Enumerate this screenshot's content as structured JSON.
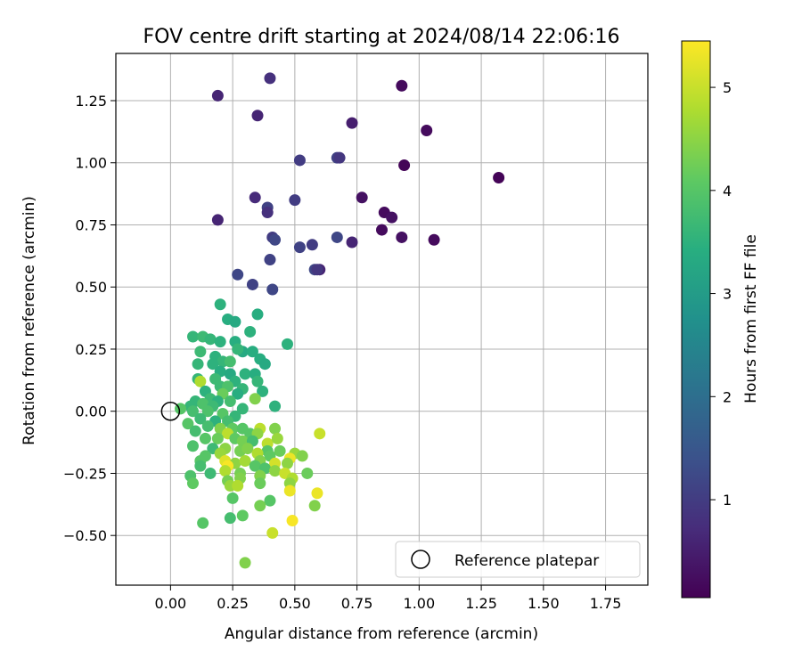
{
  "chart_data": {
    "type": "scatter",
    "title": "FOV centre drift starting at 2024/08/14 22:06:16",
    "xlabel": "Angular distance from reference (arcmin)",
    "ylabel": "Rotation from reference (arcmin)",
    "xlim": [
      -0.22,
      1.92
    ],
    "ylim": [
      -0.7,
      1.44
    ],
    "xticks": [
      "0.00",
      "0.25",
      "0.50",
      "0.75",
      "1.00",
      "1.25",
      "1.50",
      "1.75"
    ],
    "xtick_values": [
      0,
      0.25,
      0.5,
      0.75,
      1.0,
      1.25,
      1.5,
      1.75
    ],
    "yticks": [
      "−0.50",
      "−0.25",
      "0.00",
      "0.25",
      "0.50",
      "0.75",
      "1.00",
      "1.25"
    ],
    "ytick_values": [
      -0.5,
      -0.25,
      0,
      0.25,
      0.5,
      0.75,
      1.0,
      1.25
    ],
    "grid": true,
    "legend": {
      "placement": "lower-right",
      "entries": [
        "Reference platepar"
      ]
    },
    "reference": {
      "x": 0,
      "y": 0
    },
    "colorbar": {
      "label": "Hours from first FF file",
      "colormap": "viridis",
      "range": [
        0.05,
        5.45
      ],
      "tick_values": [
        1,
        2,
        3,
        4,
        5
      ],
      "ticks": [
        "1",
        "2",
        "3",
        "4",
        "5"
      ]
    },
    "points": [
      {
        "x": 0.4,
        "y": 1.34,
        "h": 0.8
      },
      {
        "x": 0.93,
        "y": 1.31,
        "h": 0.2
      },
      {
        "x": 0.19,
        "y": 1.27,
        "h": 0.6
      },
      {
        "x": 0.35,
        "y": 1.19,
        "h": 0.6
      },
      {
        "x": 0.73,
        "y": 1.16,
        "h": 0.5
      },
      {
        "x": 1.03,
        "y": 1.13,
        "h": 0.2
      },
      {
        "x": 0.52,
        "y": 1.01,
        "h": 1.0
      },
      {
        "x": 0.67,
        "y": 1.02,
        "h": 1.1
      },
      {
        "x": 0.68,
        "y": 1.02,
        "h": 0.9
      },
      {
        "x": 0.94,
        "y": 0.99,
        "h": 0.1
      },
      {
        "x": 1.32,
        "y": 0.94,
        "h": 0.1
      },
      {
        "x": 0.34,
        "y": 0.86,
        "h": 0.7
      },
      {
        "x": 0.5,
        "y": 0.85,
        "h": 1.0
      },
      {
        "x": 0.77,
        "y": 0.86,
        "h": 0.3
      },
      {
        "x": 0.39,
        "y": 0.82,
        "h": 1.1
      },
      {
        "x": 0.39,
        "y": 0.8,
        "h": 0.8
      },
      {
        "x": 0.86,
        "y": 0.8,
        "h": 0.2
      },
      {
        "x": 0.89,
        "y": 0.78,
        "h": 0.3
      },
      {
        "x": 0.19,
        "y": 0.77,
        "h": 0.6
      },
      {
        "x": 0.85,
        "y": 0.73,
        "h": 0.2
      },
      {
        "x": 0.93,
        "y": 0.7,
        "h": 0.3
      },
      {
        "x": 1.06,
        "y": 0.69,
        "h": 0.2
      },
      {
        "x": 0.41,
        "y": 0.7,
        "h": 1.0
      },
      {
        "x": 0.42,
        "y": 0.69,
        "h": 1.2
      },
      {
        "x": 0.67,
        "y": 0.7,
        "h": 1.2
      },
      {
        "x": 0.73,
        "y": 0.68,
        "h": 0.6
      },
      {
        "x": 0.52,
        "y": 0.66,
        "h": 1.1
      },
      {
        "x": 0.57,
        "y": 0.67,
        "h": 1.0
      },
      {
        "x": 0.4,
        "y": 0.61,
        "h": 1.1
      },
      {
        "x": 0.6,
        "y": 0.57,
        "h": 0.6
      },
      {
        "x": 0.58,
        "y": 0.57,
        "h": 1.2
      },
      {
        "x": 0.59,
        "y": 0.57,
        "h": 0.9
      },
      {
        "x": 0.27,
        "y": 0.55,
        "h": 1.2
      },
      {
        "x": 0.33,
        "y": 0.51,
        "h": 1.1
      },
      {
        "x": 0.41,
        "y": 0.49,
        "h": 1.2
      },
      {
        "x": 0.2,
        "y": 0.43,
        "h": 3.5
      },
      {
        "x": 0.23,
        "y": 0.37,
        "h": 3.4
      },
      {
        "x": 0.26,
        "y": 0.36,
        "h": 3.3
      },
      {
        "x": 0.35,
        "y": 0.39,
        "h": 3.4
      },
      {
        "x": 0.32,
        "y": 0.32,
        "h": 3.5
      },
      {
        "x": 0.09,
        "y": 0.3,
        "h": 3.6
      },
      {
        "x": 0.13,
        "y": 0.3,
        "h": 3.7
      },
      {
        "x": 0.16,
        "y": 0.29,
        "h": 3.6
      },
      {
        "x": 0.2,
        "y": 0.28,
        "h": 3.5
      },
      {
        "x": 0.26,
        "y": 0.28,
        "h": 3.4
      },
      {
        "x": 0.47,
        "y": 0.27,
        "h": 3.5
      },
      {
        "x": 0.29,
        "y": 0.24,
        "h": 3.3
      },
      {
        "x": 0.33,
        "y": 0.24,
        "h": 3.4
      },
      {
        "x": 0.27,
        "y": 0.25,
        "h": 3.6
      },
      {
        "x": 0.12,
        "y": 0.24,
        "h": 3.7
      },
      {
        "x": 0.18,
        "y": 0.22,
        "h": 3.5
      },
      {
        "x": 0.21,
        "y": 0.2,
        "h": 3.6
      },
      {
        "x": 0.24,
        "y": 0.2,
        "h": 3.8
      },
      {
        "x": 0.36,
        "y": 0.21,
        "h": 3.4
      },
      {
        "x": 0.38,
        "y": 0.19,
        "h": 3.3
      },
      {
        "x": 0.11,
        "y": 0.19,
        "h": 3.6
      },
      {
        "x": 0.17,
        "y": 0.19,
        "h": 3.5
      },
      {
        "x": 0.2,
        "y": 0.16,
        "h": 3.4
      },
      {
        "x": 0.24,
        "y": 0.15,
        "h": 3.3
      },
      {
        "x": 0.3,
        "y": 0.15,
        "h": 3.5
      },
      {
        "x": 0.34,
        "y": 0.15,
        "h": 3.4
      },
      {
        "x": 0.11,
        "y": 0.13,
        "h": 3.6
      },
      {
        "x": 0.12,
        "y": 0.12,
        "h": 4.8
      },
      {
        "x": 0.18,
        "y": 0.13,
        "h": 3.7
      },
      {
        "x": 0.26,
        "y": 0.12,
        "h": 3.5
      },
      {
        "x": 0.35,
        "y": 0.12,
        "h": 3.6
      },
      {
        "x": 0.2,
        "y": 0.1,
        "h": 3.7
      },
      {
        "x": 0.23,
        "y": 0.1,
        "h": 3.9
      },
      {
        "x": 0.29,
        "y": 0.09,
        "h": 3.6
      },
      {
        "x": 0.14,
        "y": 0.08,
        "h": 3.5
      },
      {
        "x": 0.21,
        "y": 0.07,
        "h": 4.2
      },
      {
        "x": 0.27,
        "y": 0.07,
        "h": 3.4
      },
      {
        "x": 0.37,
        "y": 0.08,
        "h": 3.5
      },
      {
        "x": 0.34,
        "y": 0.05,
        "h": 4.4
      },
      {
        "x": 0.16,
        "y": 0.05,
        "h": 3.7
      },
      {
        "x": 0.1,
        "y": 0.04,
        "h": 3.6
      },
      {
        "x": 0.19,
        "y": 0.04,
        "h": 3.5
      },
      {
        "x": 0.24,
        "y": 0.04,
        "h": 3.8
      },
      {
        "x": 0.13,
        "y": 0.03,
        "h": 3.9
      },
      {
        "x": 0.08,
        "y": 0.02,
        "h": 3.6
      },
      {
        "x": 0.17,
        "y": 0.02,
        "h": 3.7
      },
      {
        "x": 0.29,
        "y": 0.01,
        "h": 3.6
      },
      {
        "x": 0.42,
        "y": 0.02,
        "h": 3.5
      },
      {
        "x": 0.04,
        "y": 0.01,
        "h": 4.0
      },
      {
        "x": 0.09,
        "y": 0.0,
        "h": 3.8
      },
      {
        "x": 0.15,
        "y": 0.0,
        "h": 3.9
      },
      {
        "x": 0.21,
        "y": -0.01,
        "h": 4.0
      },
      {
        "x": 0.26,
        "y": -0.02,
        "h": 3.6
      },
      {
        "x": 0.12,
        "y": -0.03,
        "h": 3.7
      },
      {
        "x": 0.18,
        "y": -0.04,
        "h": 3.5
      },
      {
        "x": 0.23,
        "y": -0.04,
        "h": 3.8
      },
      {
        "x": 0.07,
        "y": -0.05,
        "h": 4.0
      },
      {
        "x": 0.15,
        "y": -0.06,
        "h": 3.8
      },
      {
        "x": 0.2,
        "y": -0.07,
        "h": 4.4
      },
      {
        "x": 0.25,
        "y": -0.07,
        "h": 4.1
      },
      {
        "x": 0.29,
        "y": -0.07,
        "h": 4.0
      },
      {
        "x": 0.36,
        "y": -0.07,
        "h": 4.9
      },
      {
        "x": 0.42,
        "y": -0.07,
        "h": 4.4
      },
      {
        "x": 0.1,
        "y": -0.08,
        "h": 3.8
      },
      {
        "x": 0.23,
        "y": -0.09,
        "h": 4.9
      },
      {
        "x": 0.32,
        "y": -0.09,
        "h": 4.0
      },
      {
        "x": 0.35,
        "y": -0.09,
        "h": 4.5
      },
      {
        "x": 0.6,
        "y": -0.09,
        "h": 5.0
      },
      {
        "x": 0.14,
        "y": -0.11,
        "h": 4.0
      },
      {
        "x": 0.19,
        "y": -0.11,
        "h": 4.2
      },
      {
        "x": 0.26,
        "y": -0.11,
        "h": 4.1
      },
      {
        "x": 0.29,
        "y": -0.12,
        "h": 4.3
      },
      {
        "x": 0.33,
        "y": -0.12,
        "h": 3.8
      },
      {
        "x": 0.39,
        "y": -0.13,
        "h": 4.9
      },
      {
        "x": 0.43,
        "y": -0.11,
        "h": 4.6
      },
      {
        "x": 0.09,
        "y": -0.14,
        "h": 3.9
      },
      {
        "x": 0.17,
        "y": -0.15,
        "h": 3.7
      },
      {
        "x": 0.22,
        "y": -0.15,
        "h": 4.5
      },
      {
        "x": 0.28,
        "y": -0.16,
        "h": 4.3
      },
      {
        "x": 0.31,
        "y": -0.15,
        "h": 4.4
      },
      {
        "x": 0.39,
        "y": -0.16,
        "h": 4.0
      },
      {
        "x": 0.44,
        "y": -0.16,
        "h": 4.2
      },
      {
        "x": 0.5,
        "y": -0.17,
        "h": 4.6
      },
      {
        "x": 0.14,
        "y": -0.18,
        "h": 4.0
      },
      {
        "x": 0.2,
        "y": -0.17,
        "h": 4.6
      },
      {
        "x": 0.35,
        "y": -0.17,
        "h": 4.8
      },
      {
        "x": 0.4,
        "y": -0.18,
        "h": 4.1
      },
      {
        "x": 0.48,
        "y": -0.19,
        "h": 5.3
      },
      {
        "x": 0.53,
        "y": -0.18,
        "h": 4.4
      },
      {
        "x": 0.12,
        "y": -0.2,
        "h": 4.0
      },
      {
        "x": 0.22,
        "y": -0.2,
        "h": 5.2
      },
      {
        "x": 0.26,
        "y": -0.21,
        "h": 4.5
      },
      {
        "x": 0.3,
        "y": -0.2,
        "h": 4.7
      },
      {
        "x": 0.36,
        "y": -0.2,
        "h": 4.4
      },
      {
        "x": 0.42,
        "y": -0.21,
        "h": 5.1
      },
      {
        "x": 0.47,
        "y": -0.21,
        "h": 4.5
      },
      {
        "x": 0.12,
        "y": -0.22,
        "h": 3.8
      },
      {
        "x": 0.23,
        "y": -0.22,
        "h": 5.4
      },
      {
        "x": 0.34,
        "y": -0.22,
        "h": 4.0
      },
      {
        "x": 0.38,
        "y": -0.23,
        "h": 3.9
      },
      {
        "x": 0.16,
        "y": -0.25,
        "h": 3.7
      },
      {
        "x": 0.22,
        "y": -0.24,
        "h": 4.8
      },
      {
        "x": 0.28,
        "y": -0.25,
        "h": 4.3
      },
      {
        "x": 0.42,
        "y": -0.24,
        "h": 4.5
      },
      {
        "x": 0.46,
        "y": -0.25,
        "h": 5.0
      },
      {
        "x": 0.55,
        "y": -0.25,
        "h": 4.2
      },
      {
        "x": 0.08,
        "y": -0.26,
        "h": 3.9
      },
      {
        "x": 0.36,
        "y": -0.26,
        "h": 4.4
      },
      {
        "x": 0.49,
        "y": -0.27,
        "h": 4.8
      },
      {
        "x": 0.23,
        "y": -0.28,
        "h": 4.3
      },
      {
        "x": 0.28,
        "y": -0.27,
        "h": 4.4
      },
      {
        "x": 0.36,
        "y": -0.29,
        "h": 4.2
      },
      {
        "x": 0.09,
        "y": -0.29,
        "h": 4.1
      },
      {
        "x": 0.24,
        "y": -0.3,
        "h": 4.6
      },
      {
        "x": 0.27,
        "y": -0.3,
        "h": 4.8
      },
      {
        "x": 0.48,
        "y": -0.29,
        "h": 4.5
      },
      {
        "x": 0.48,
        "y": -0.32,
        "h": 5.3
      },
      {
        "x": 0.59,
        "y": -0.33,
        "h": 5.3
      },
      {
        "x": 0.25,
        "y": -0.35,
        "h": 4.0
      },
      {
        "x": 0.4,
        "y": -0.36,
        "h": 4.0
      },
      {
        "x": 0.36,
        "y": -0.38,
        "h": 4.3
      },
      {
        "x": 0.58,
        "y": -0.38,
        "h": 4.4
      },
      {
        "x": 0.29,
        "y": -0.42,
        "h": 4.1
      },
      {
        "x": 0.24,
        "y": -0.43,
        "h": 3.8
      },
      {
        "x": 0.49,
        "y": -0.44,
        "h": 5.4
      },
      {
        "x": 0.13,
        "y": -0.45,
        "h": 4.0
      },
      {
        "x": 0.41,
        "y": -0.49,
        "h": 5.0
      },
      {
        "x": 0.3,
        "y": -0.61,
        "h": 4.4
      }
    ]
  }
}
